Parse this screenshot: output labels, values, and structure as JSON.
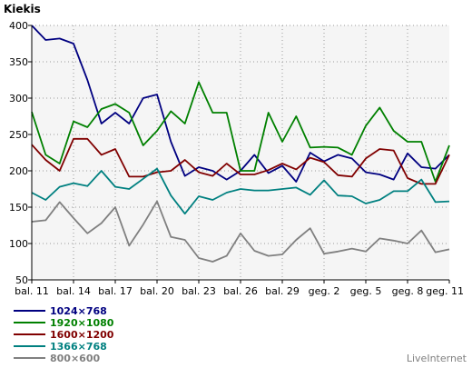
{
  "chart_data": {
    "type": "line",
    "title": "Kiekis",
    "categories": [
      "bal. 11",
      "bal. 12",
      "bal. 13",
      "bal. 14",
      "bal. 15",
      "bal. 16",
      "bal. 17",
      "bal. 18",
      "bal. 19",
      "bal. 20",
      "bal. 21",
      "bal. 22",
      "bal. 23",
      "bal. 24",
      "bal. 25",
      "bal. 26",
      "bal. 27",
      "bal. 28",
      "bal. 29",
      "bal. 30",
      "geg. 1",
      "geg. 2",
      "geg. 3",
      "geg. 4",
      "geg. 5",
      "geg. 6",
      "geg. 7",
      "geg. 8",
      "geg. 9",
      "geg. 10",
      "geg. 11"
    ],
    "tick_labels": [
      "bal. 11",
      "bal. 14",
      "bal. 17",
      "bal. 20",
      "bal. 23",
      "bal. 26",
      "bal. 29",
      "geg. 2",
      "geg. 5",
      "geg. 8",
      "geg. 11"
    ],
    "ylim": [
      50,
      400
    ],
    "yticks": [
      50,
      100,
      150,
      200,
      250,
      300,
      350,
      400
    ],
    "grid": true,
    "legend_position": "bottom-left",
    "series": [
      {
        "name": "1024×768",
        "color": "#000080",
        "values": [
          400,
          380,
          382,
          375,
          325,
          265,
          280,
          265,
          300,
          305,
          240,
          193,
          205,
          200,
          188,
          200,
          222,
          197,
          207,
          185,
          225,
          213,
          222,
          217,
          198,
          195,
          188,
          224,
          205,
          203,
          222
        ]
      },
      {
        "name": "1920×1080",
        "color": "#008000",
        "values": [
          281,
          222,
          210,
          268,
          260,
          285,
          292,
          280,
          235,
          255,
          282,
          265,
          322,
          280,
          280,
          200,
          200,
          280,
          240,
          275,
          232,
          233,
          232,
          222,
          262,
          287,
          255,
          240,
          240,
          185,
          235
        ]
      },
      {
        "name": "1600×1200",
        "color": "#800000",
        "values": [
          236,
          215,
          200,
          244,
          244,
          222,
          230,
          192,
          192,
          198,
          200,
          215,
          198,
          193,
          210,
          195,
          195,
          201,
          210,
          202,
          218,
          212,
          194,
          192,
          217,
          230,
          228,
          190,
          182,
          182,
          222
        ]
      },
      {
        "name": "1366×768",
        "color": "#008080",
        "values": [
          170,
          160,
          178,
          183,
          179,
          200,
          178,
          175,
          189,
          203,
          166,
          141,
          165,
          160,
          170,
          175,
          173,
          173,
          175,
          177,
          167,
          187,
          166,
          165,
          155,
          160,
          172,
          172,
          188,
          157,
          158
        ]
      },
      {
        "name": "800×600",
        "color": "#808080",
        "values": [
          130,
          132,
          157,
          135,
          114,
          128,
          150,
          97,
          126,
          158,
          109,
          105,
          80,
          75,
          83,
          114,
          90,
          83,
          85,
          105,
          121,
          86,
          89,
          93,
          89,
          107,
          104,
          100,
          118,
          88,
          92
        ]
      }
    ]
  },
  "credit": "LiveInternet"
}
